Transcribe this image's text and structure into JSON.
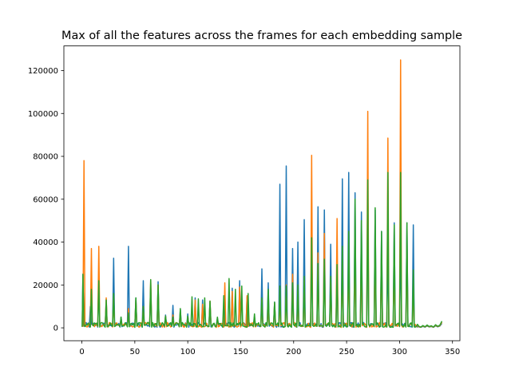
{
  "chart_data": {
    "type": "line",
    "title": "Max of all the features across the frames for each embedding sample",
    "xlabel": "",
    "ylabel": "",
    "xlim": [
      -17,
      357
    ],
    "ylim": [
      -6000,
      131500
    ],
    "x_ticks": [
      0,
      50,
      100,
      150,
      200,
      250,
      300,
      350
    ],
    "y_ticks": [
      0,
      20000,
      40000,
      60000,
      80000,
      100000,
      120000
    ],
    "x_tick_labels": [
      "0",
      "50",
      "100",
      "150",
      "200",
      "250",
      "300",
      "350"
    ],
    "y_tick_labels": [
      "0",
      "20000",
      "40000",
      "60000",
      "80000",
      "100000",
      "120000"
    ],
    "grid": false,
    "legend": "none",
    "baseline": 900,
    "tail": {
      "x": [
        318,
        320,
        322,
        324,
        326,
        328,
        330,
        332,
        334,
        336,
        338,
        340
      ],
      "values": [
        600,
        300,
        900,
        400,
        1100,
        500,
        800,
        300,
        1200,
        600,
        1000,
        2600
      ]
    },
    "series": [
      {
        "color": "#1f77b4",
        "peaks_x": [
          1,
          8,
          16,
          23,
          30,
          37,
          44,
          51,
          58,
          65,
          72,
          79,
          86,
          93,
          100,
          107,
          114,
          121,
          128,
          135,
          142,
          149,
          156,
          163,
          170,
          176,
          182,
          187,
          193,
          199,
          204,
          210,
          217,
          223,
          229,
          235,
          241,
          246,
          252,
          258,
          264,
          270,
          277,
          283,
          289,
          295,
          301,
          307,
          313
        ],
        "peaks_y": [
          25000,
          10000,
          21000,
          13000,
          32500,
          5000,
          38000,
          14000,
          22000,
          19000,
          21500,
          6000,
          10500,
          8500,
          6500,
          14000,
          13000,
          12000,
          4500,
          16500,
          18500,
          22000,
          14500,
          5000,
          27500,
          21000,
          12000,
          67000,
          75500,
          37000,
          40000,
          50500,
          44000,
          56500,
          55000,
          39000,
          30000,
          69500,
          72500,
          63000,
          54000,
          58000,
          55000,
          45000,
          39000,
          49000,
          44000,
          49000,
          48000
        ]
      },
      {
        "color": "#ff7f0e",
        "peaks_x": [
          2,
          9,
          16,
          23,
          30,
          37,
          44,
          51,
          58,
          65,
          72,
          79,
          86,
          93,
          100,
          107,
          114,
          121,
          128,
          135,
          142,
          149,
          156,
          163,
          170,
          176,
          182,
          187,
          193,
          199,
          204,
          210,
          217,
          223,
          229,
          235,
          241,
          246,
          252,
          258,
          264,
          270,
          277,
          283,
          289,
          295,
          301,
          307,
          313
        ],
        "peaks_y": [
          78000,
          37000,
          38000,
          14000,
          15000,
          4000,
          9000,
          13000,
          10000,
          22500,
          20000,
          5500,
          6000,
          7000,
          5000,
          13000,
          11000,
          12500,
          4000,
          21000,
          17000,
          19000,
          15000,
          5000,
          13000,
          10000,
          11500,
          14000,
          20000,
          25000,
          17000,
          22000,
          80500,
          35000,
          44000,
          23000,
          51000,
          30000,
          33000,
          38000,
          36000,
          101000,
          40000,
          35000,
          88500,
          32000,
          125000,
          39000,
          20000
        ]
      },
      {
        "color": "#2ca02c",
        "peaks_x": [
          1,
          9,
          16,
          23,
          30,
          37,
          44,
          51,
          58,
          65,
          72,
          79,
          86,
          93,
          100,
          104,
          110,
          116,
          121,
          128,
          134,
          139,
          145,
          151,
          157,
          163,
          170,
          176,
          182,
          187,
          193,
          199,
          204,
          210,
          217,
          223,
          229,
          235,
          241,
          246,
          252,
          258,
          264,
          270,
          277,
          283,
          289,
          295,
          301,
          307,
          313
        ],
        "peaks_y": [
          25000,
          18000,
          22000,
          13000,
          16000,
          5000,
          7000,
          14000,
          10000,
          22500,
          20000,
          5500,
          5000,
          9000,
          5500,
          14500,
          13500,
          14000,
          12500,
          5000,
          15000,
          23000,
          18000,
          19500,
          16000,
          6500,
          14000,
          18000,
          12000,
          19500,
          19500,
          21000,
          20000,
          24000,
          42000,
          30000,
          32000,
          24000,
          29500,
          38000,
          45000,
          60000,
          50000,
          69000,
          56000,
          45000,
          72500,
          48000,
          72500,
          49000,
          27000
        ]
      }
    ]
  }
}
